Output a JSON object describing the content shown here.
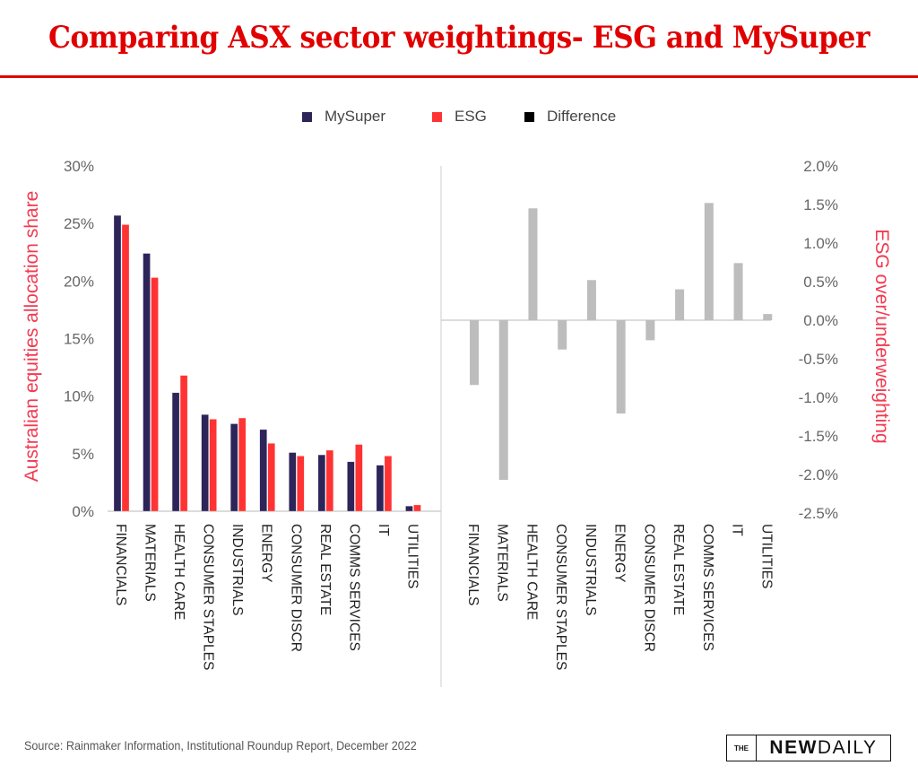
{
  "header": {
    "title": "Comparing ASX sector weightings- ESG and MySuper"
  },
  "legend": [
    {
      "label": "MySuper",
      "color": "#2d2459"
    },
    {
      "label": "ESG",
      "color": "#ff3333"
    },
    {
      "label": "Difference",
      "color": "#000000"
    }
  ],
  "footer": {
    "source": "Source: Rainmaker Information, Institutional Roundup Report, December 2022",
    "logo_the": "THE",
    "logo_new": "NEW",
    "logo_daily": "DAILY"
  },
  "chart_data": [
    {
      "type": "bar",
      "title": "Sector allocation share",
      "xlabel": "",
      "ylabel": "Australian equities allocation share",
      "ylim": [
        0,
        30
      ],
      "yticks": [
        "0%",
        "5%",
        "10%",
        "15%",
        "20%",
        "25%",
        "30%"
      ],
      "ytick_values": [
        0,
        5,
        10,
        15,
        20,
        25,
        30
      ],
      "grid": false,
      "categories": [
        "FINANCIALS",
        "MATERIALS",
        "HEALTH CARE",
        "CONSUMER STAPLES",
        "INDUSTRIALS",
        "ENERGY",
        "CONSUMER DISCR",
        "REAL ESTATE",
        "COMMS SERVICES",
        "IT",
        "UTILITIES"
      ],
      "series": [
        {
          "name": "MySuper",
          "color": "#2d2459",
          "values": [
            25.7,
            22.4,
            10.3,
            8.4,
            7.6,
            7.1,
            5.1,
            4.9,
            4.3,
            4.0,
            0.45
          ]
        },
        {
          "name": "ESG",
          "color": "#ff3333",
          "values": [
            24.9,
            20.3,
            11.8,
            8.0,
            8.1,
            5.9,
            4.8,
            5.3,
            5.8,
            4.8,
            0.55
          ]
        }
      ]
    },
    {
      "type": "bar",
      "title": "ESG over/underweighting",
      "xlabel": "",
      "ylabel": "ESG over/underweighting",
      "ylim": [
        -2.5,
        2.0
      ],
      "yticks": [
        "-2.5%",
        "-2.0%",
        "-1.5%",
        "-1.0%",
        "-0.5%",
        "0.0%",
        "0.5%",
        "1.0%",
        "1.5%",
        "2.0%"
      ],
      "ytick_values": [
        -2.5,
        -2.0,
        -1.5,
        -1.0,
        -0.5,
        0.0,
        0.5,
        1.0,
        1.5,
        2.0
      ],
      "grid": false,
      "axis_side": "right",
      "categories": [
        "FINANCIALS",
        "MATERIALS",
        "HEALTH CARE",
        "CONSUMER STAPLES",
        "INDUSTRIALS",
        "ENERGY",
        "CONSUMER DISCR",
        "REAL ESTATE",
        "COMMS SERVICES",
        "IT",
        "UTILITIES"
      ],
      "series": [
        {
          "name": "Difference",
          "color": "#bdbdbd",
          "values": [
            -0.84,
            -2.07,
            1.45,
            -0.38,
            0.52,
            -1.21,
            -0.26,
            0.4,
            1.52,
            0.74,
            0.08
          ]
        }
      ]
    }
  ]
}
